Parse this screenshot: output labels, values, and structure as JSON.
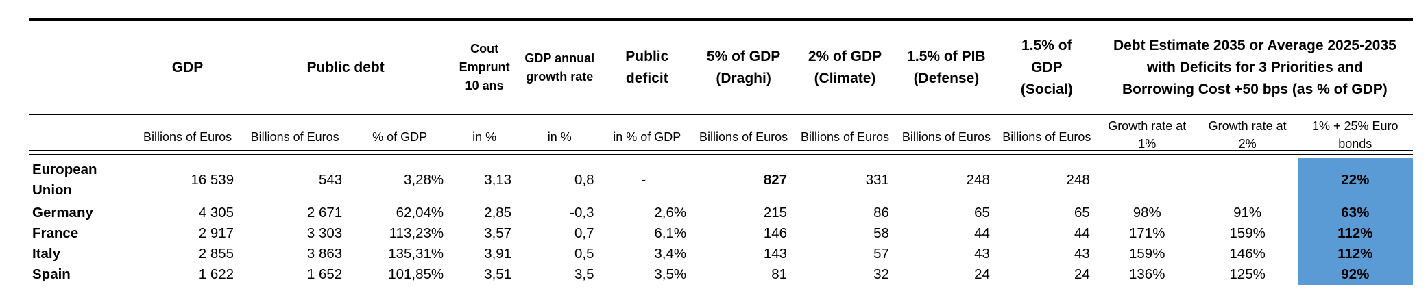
{
  "headers": {
    "gdp": "GDP",
    "public_debt": "Public debt",
    "cout": "Cout Emprunt 10 ans",
    "gdp_growth": "GDP annual growth rate",
    "public_deficit": "Public deficit",
    "draghi": "5% of GDP (Draghi)",
    "climate": "2% of GDP (Climate)",
    "defense": "1.5% of PIB (Defense)",
    "social": "1.5% of GDP (Social)",
    "debt_estimate": "Debt Estimate 2035 or Average 2025-2035 with Deficits for 3 Priorities and Borrowing Cost +50 bps (as % of GDP)"
  },
  "units": {
    "gdp": "Billions of Euros",
    "debt_bn": "Billions of Euros",
    "debt_pct": "% of GDP",
    "cout": "in %",
    "growth": "in %",
    "deficit": "in % of GDP",
    "draghi": "Billions of Euros",
    "climate": "Billions of Euros",
    "defense": "Billions of Euros",
    "social": "Billions of Euros",
    "growth1": "Growth rate at 1%",
    "growth2": "Growth rate at 2%",
    "eurobonds": "1% + 25% Euro bonds"
  },
  "rows": [
    {
      "country": "European Union",
      "gdp": "16 539",
      "debt_bn": "543",
      "debt_pct": "3,28%",
      "cout": "3,13",
      "growth": "0,8",
      "deficit": "-",
      "draghi": "827",
      "climate": "331",
      "defense": "248",
      "social": "248",
      "g1": "",
      "g2": "",
      "eb": "22%"
    },
    {
      "country": "Germany",
      "gdp": "4 305",
      "debt_bn": "2 671",
      "debt_pct": "62,04%",
      "cout": "2,85",
      "growth": "-0,3",
      "deficit": "2,6%",
      "draghi": "215",
      "climate": "86",
      "defense": "65",
      "social": "65",
      "g1": "98%",
      "g2": "91%",
      "eb": "63%"
    },
    {
      "country": "France",
      "gdp": "2 917",
      "debt_bn": "3 303",
      "debt_pct": "113,23%",
      "cout": "3,57",
      "growth": "0,7",
      "deficit": "6,1%",
      "draghi": "146",
      "climate": "58",
      "defense": "44",
      "social": "44",
      "g1": "171%",
      "g2": "159%",
      "eb": "112%"
    },
    {
      "country": "Italy",
      "gdp": "2 855",
      "debt_bn": "3 863",
      "debt_pct": "135,31%",
      "cout": "3,91",
      "growth": "0,5",
      "deficit": "3,4%",
      "draghi": "143",
      "climate": "57",
      "defense": "43",
      "social": "43",
      "g1": "159%",
      "g2": "146%",
      "eb": "112%"
    },
    {
      "country": "Spain",
      "gdp": "1 622",
      "debt_bn": "1 652",
      "debt_pct": "101,85%",
      "cout": "3,51",
      "growth": "3,5",
      "deficit": "3,5%",
      "draghi": "81",
      "climate": "32",
      "defense": "24",
      "social": "24",
      "g1": "136%",
      "g2": "125%",
      "eb": "92%"
    }
  ]
}
